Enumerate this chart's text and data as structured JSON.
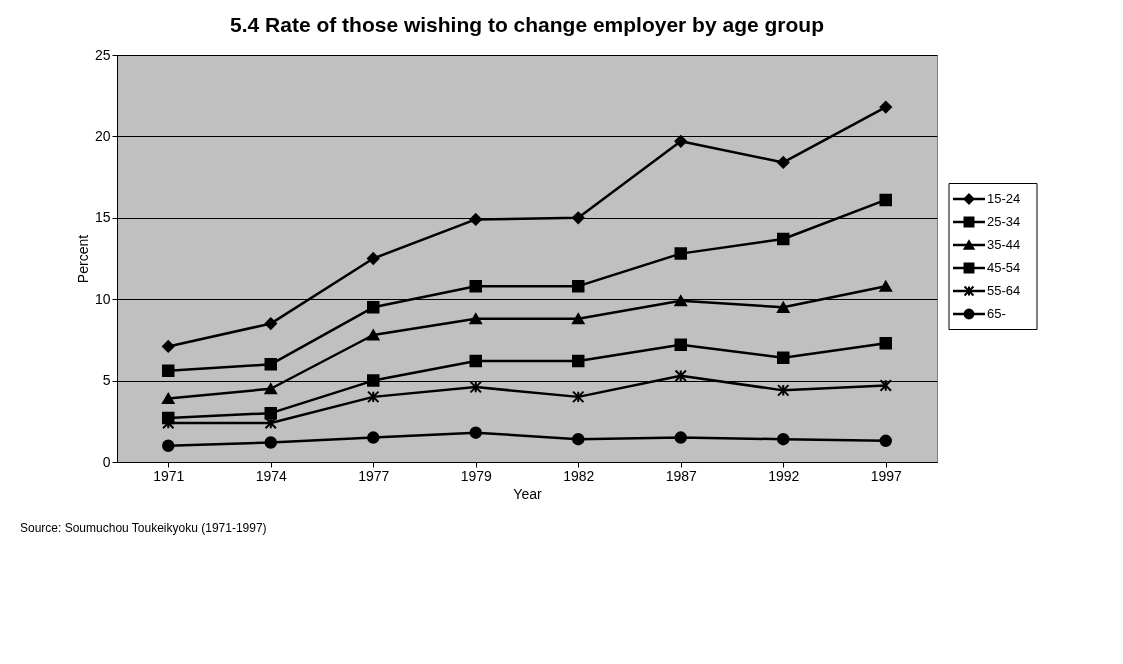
{
  "chart_data": {
    "type": "line",
    "title": "5.4 Rate of those wishing to change employer by age group",
    "xlabel": "Year",
    "ylabel": "Percent",
    "categories": [
      "1971",
      "1974",
      "1977",
      "1979",
      "1982",
      "1987",
      "1992",
      "1997"
    ],
    "series": [
      {
        "name": "15-24",
        "color": "#000000",
        "marker": "diamond",
        "values": [
          7.1,
          8.5,
          12.5,
          14.9,
          15.0,
          19.7,
          18.4,
          21.8
        ]
      },
      {
        "name": "25-34",
        "color": "#000000",
        "marker": "square",
        "values": [
          5.6,
          6.0,
          9.5,
          10.8,
          10.8,
          12.8,
          13.7,
          16.1
        ]
      },
      {
        "name": "35-44",
        "color": "#000000",
        "marker": "triangle",
        "values": [
          3.9,
          4.5,
          7.8,
          8.8,
          8.8,
          9.9,
          9.5,
          10.8
        ]
      },
      {
        "name": "45-54",
        "color": "#000000",
        "marker": "square",
        "values": [
          2.7,
          3.0,
          5.0,
          6.2,
          6.2,
          7.2,
          6.4,
          7.3
        ]
      },
      {
        "name": "55-64",
        "color": "#000000",
        "marker": "cross",
        "values": [
          2.4,
          2.4,
          4.0,
          4.6,
          4.0,
          5.3,
          4.4,
          4.7
        ]
      },
      {
        "name": "65-",
        "color": "#000000",
        "marker": "circle",
        "values": [
          1.0,
          1.2,
          1.5,
          1.8,
          1.4,
          1.5,
          1.4,
          1.3
        ]
      }
    ],
    "ylim": [
      0,
      25
    ],
    "yticks": [
      0,
      5,
      10,
      15,
      20,
      25
    ],
    "grid": "y",
    "legend": "right",
    "line_style": "solid",
    "annotations": [
      "Source: Soumuchou Toukeikyoku (1971-1997)"
    ]
  }
}
